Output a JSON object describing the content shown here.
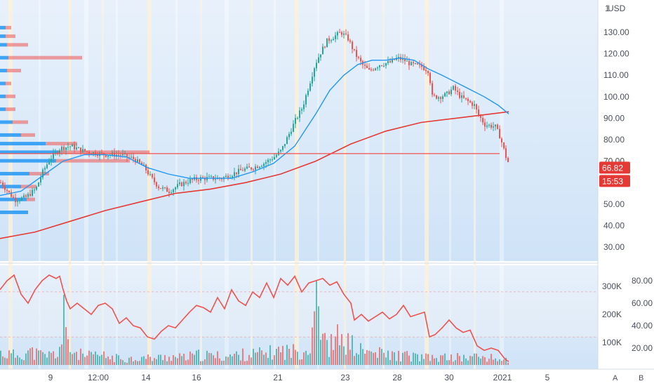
{
  "chart_data": {
    "type": "candlestick",
    "currency": "USD",
    "price_axis": {
      "ticks": [
        "130.00",
        "120.00",
        "110.00",
        "100.00",
        "90.00",
        "80.00",
        "70.00",
        "60.00",
        "50.00",
        "40.00",
        "30.00"
      ],
      "ylim": [
        22,
        143
      ]
    },
    "time_axis": {
      "ticks": [
        "9",
        "12:00",
        "14",
        "16",
        "21",
        "23",
        "28",
        "30",
        "2021",
        "5"
      ],
      "tick_hours": [
        72,
        140,
        208,
        280,
        396,
        492,
        566,
        640,
        716,
        780
      ]
    },
    "last_price": "66.82",
    "countdown": "15:53",
    "horizontal_line": 73.5,
    "price_path": [
      [
        0,
        60
      ],
      [
        10,
        56
      ],
      [
        20,
        52
      ],
      [
        35,
        53
      ],
      [
        50,
        57
      ],
      [
        60,
        65
      ],
      [
        70,
        71
      ],
      [
        85,
        76
      ],
      [
        100,
        77
      ],
      [
        115,
        75
      ],
      [
        130,
        74
      ],
      [
        150,
        73
      ],
      [
        170,
        73
      ],
      [
        190,
        71
      ],
      [
        205,
        67
      ],
      [
        215,
        62
      ],
      [
        225,
        58
      ],
      [
        240,
        56
      ],
      [
        255,
        59
      ],
      [
        270,
        61
      ],
      [
        285,
        62
      ],
      [
        300,
        62
      ],
      [
        315,
        62
      ],
      [
        330,
        64
      ],
      [
        345,
        66
      ],
      [
        360,
        67
      ],
      [
        375,
        69
      ],
      [
        390,
        72
      ],
      [
        400,
        75
      ],
      [
        410,
        82
      ],
      [
        420,
        89
      ],
      [
        430,
        95
      ],
      [
        440,
        106
      ],
      [
        448,
        115
      ],
      [
        455,
        120
      ],
      [
        465,
        126
      ],
      [
        475,
        128
      ],
      [
        485,
        130
      ],
      [
        495,
        127
      ],
      [
        505,
        120
      ],
      [
        515,
        115
      ],
      [
        525,
        112
      ],
      [
        540,
        115
      ],
      [
        555,
        116
      ],
      [
        565,
        118
      ],
      [
        575,
        117
      ],
      [
        585,
        115
      ],
      [
        600,
        114
      ],
      [
        610,
        112
      ],
      [
        615,
        100
      ],
      [
        625,
        100
      ],
      [
        635,
        101
      ],
      [
        645,
        104
      ],
      [
        655,
        100
      ],
      [
        665,
        98
      ],
      [
        675,
        96
      ],
      [
        680,
        92
      ],
      [
        690,
        87
      ],
      [
        705,
        86
      ],
      [
        712,
        81
      ],
      [
        720,
        72
      ],
      [
        725,
        68
      ]
    ],
    "ma_short": [
      [
        0,
        54
      ],
      [
        30,
        56
      ],
      [
        60,
        63
      ],
      [
        90,
        70
      ],
      [
        120,
        73
      ],
      [
        150,
        73
      ],
      [
        180,
        72
      ],
      [
        210,
        67
      ],
      [
        240,
        64
      ],
      [
        270,
        62
      ],
      [
        300,
        62
      ],
      [
        330,
        62
      ],
      [
        360,
        65
      ],
      [
        390,
        69
      ],
      [
        420,
        77
      ],
      [
        450,
        92
      ],
      [
        470,
        103
      ],
      [
        490,
        110
      ],
      [
        510,
        115
      ],
      [
        530,
        117
      ],
      [
        550,
        117
      ],
      [
        570,
        118
      ],
      [
        590,
        117
      ],
      [
        610,
        113
      ],
      [
        630,
        110
      ],
      [
        660,
        105
      ],
      [
        690,
        100
      ],
      [
        710,
        96
      ],
      [
        725,
        92
      ]
    ],
    "ma_long": [
      [
        0,
        34
      ],
      [
        50,
        37
      ],
      [
        100,
        42
      ],
      [
        150,
        47
      ],
      [
        200,
        51
      ],
      [
        250,
        55
      ],
      [
        300,
        57
      ],
      [
        350,
        60
      ],
      [
        400,
        64
      ],
      [
        450,
        70
      ],
      [
        500,
        78
      ],
      [
        550,
        84
      ],
      [
        600,
        88
      ],
      [
        650,
        90
      ],
      [
        700,
        92
      ],
      [
        725,
        93
      ]
    ],
    "volume_profile": [
      [
        46,
        40,
        0
      ],
      [
        52,
        38,
        12
      ],
      [
        58,
        30,
        22
      ],
      [
        64,
        42,
        28
      ],
      [
        70,
        80,
        105
      ],
      [
        74,
        85,
        128
      ],
      [
        78,
        65,
        45
      ],
      [
        82,
        30,
        20
      ],
      [
        88,
        18,
        22
      ],
      [
        94,
        8,
        14
      ],
      [
        100,
        8,
        14
      ],
      [
        106,
        8,
        8
      ],
      [
        112,
        10,
        20
      ],
      [
        118,
        12,
        105
      ],
      [
        124,
        10,
        30
      ],
      [
        128,
        8,
        14
      ],
      [
        132,
        8,
        8
      ]
    ],
    "oscillator": {
      "axis_ticks": [
        "80.00",
        "60.00",
        "40.00",
        "20.00"
      ],
      "volume_ticks": [
        "300K",
        "200K",
        "100K"
      ],
      "levels": [
        70,
        30
      ],
      "series": [
        [
          0,
          72
        ],
        [
          10,
          80
        ],
        [
          20,
          85
        ],
        [
          30,
          68
        ],
        [
          40,
          60
        ],
        [
          50,
          72
        ],
        [
          60,
          80
        ],
        [
          70,
          85
        ],
        [
          80,
          82
        ],
        [
          85,
          84
        ],
        [
          90,
          72
        ],
        [
          95,
          62
        ],
        [
          100,
          55
        ],
        [
          110,
          60
        ],
        [
          120,
          55
        ],
        [
          130,
          50
        ],
        [
          140,
          58
        ],
        [
          150,
          60
        ],
        [
          160,
          55
        ],
        [
          170,
          42
        ],
        [
          180,
          47
        ],
        [
          190,
          40
        ],
        [
          200,
          38
        ],
        [
          210,
          30
        ],
        [
          220,
          28
        ],
        [
          230,
          35
        ],
        [
          240,
          40
        ],
        [
          250,
          38
        ],
        [
          260,
          45
        ],
        [
          270,
          52
        ],
        [
          280,
          58
        ],
        [
          290,
          56
        ],
        [
          300,
          52
        ],
        [
          310,
          65
        ],
        [
          320,
          55
        ],
        [
          330,
          72
        ],
        [
          340,
          62
        ],
        [
          350,
          58
        ],
        [
          360,
          70
        ],
        [
          370,
          65
        ],
        [
          380,
          78
        ],
        [
          390,
          65
        ],
        [
          400,
          82
        ],
        [
          410,
          76
        ],
        [
          420,
          84
        ],
        [
          430,
          70
        ],
        [
          440,
          78
        ],
        [
          450,
          80
        ],
        [
          460,
          82
        ],
        [
          470,
          76
        ],
        [
          480,
          79
        ],
        [
          490,
          68
        ],
        [
          500,
          60
        ],
        [
          505,
          45
        ],
        [
          515,
          50
        ],
        [
          525,
          44
        ],
        [
          535,
          48
        ],
        [
          545,
          52
        ],
        [
          555,
          46
        ],
        [
          565,
          50
        ],
        [
          575,
          58
        ],
        [
          585,
          48
        ],
        [
          595,
          50
        ],
        [
          605,
          52
        ],
        [
          612,
          30
        ],
        [
          620,
          32
        ],
        [
          630,
          38
        ],
        [
          640,
          45
        ],
        [
          650,
          38
        ],
        [
          660,
          34
        ],
        [
          670,
          36
        ],
        [
          680,
          22
        ],
        [
          690,
          18
        ],
        [
          700,
          20
        ],
        [
          710,
          18
        ],
        [
          720,
          10
        ],
        [
          725,
          8
        ]
      ],
      "volume": [
        [
          0,
          50
        ],
        [
          20,
          40
        ],
        [
          40,
          55
        ],
        [
          60,
          40
        ],
        [
          80,
          45
        ],
        [
          90,
          120
        ],
        [
          100,
          60
        ],
        [
          120,
          35
        ],
        [
          140,
          40
        ],
        [
          160,
          30
        ],
        [
          180,
          25
        ],
        [
          200,
          30
        ],
        [
          220,
          28
        ],
        [
          240,
          35
        ],
        [
          260,
          30
        ],
        [
          280,
          40
        ],
        [
          300,
          38
        ],
        [
          320,
          35
        ],
        [
          340,
          42
        ],
        [
          360,
          45
        ],
        [
          380,
          48
        ],
        [
          400,
          60
        ],
        [
          420,
          55
        ],
        [
          440,
          70
        ],
        [
          450,
          300
        ],
        [
          460,
          90
        ],
        [
          470,
          80
        ],
        [
          485,
          120
        ],
        [
          490,
          100
        ],
        [
          500,
          80
        ],
        [
          510,
          60
        ],
        [
          520,
          55
        ],
        [
          530,
          50
        ],
        [
          545,
          45
        ],
        [
          560,
          40
        ],
        [
          575,
          38
        ],
        [
          590,
          35
        ],
        [
          605,
          30
        ],
        [
          620,
          28
        ],
        [
          640,
          32
        ],
        [
          660,
          30
        ],
        [
          680,
          35
        ],
        [
          700,
          28
        ],
        [
          720,
          20
        ]
      ]
    }
  },
  "ui": {
    "scale_button_a": "A",
    "scale_button_b": "B"
  },
  "colors": {
    "up": "#26a69a",
    "down": "#ef5350",
    "ma_short": "#2196f3",
    "ma_long": "#e53935",
    "profile_up": "#2196f3",
    "profile_down": "#ef5350",
    "background_band": "#cfe3f7",
    "session_band": "#fff2d6"
  }
}
